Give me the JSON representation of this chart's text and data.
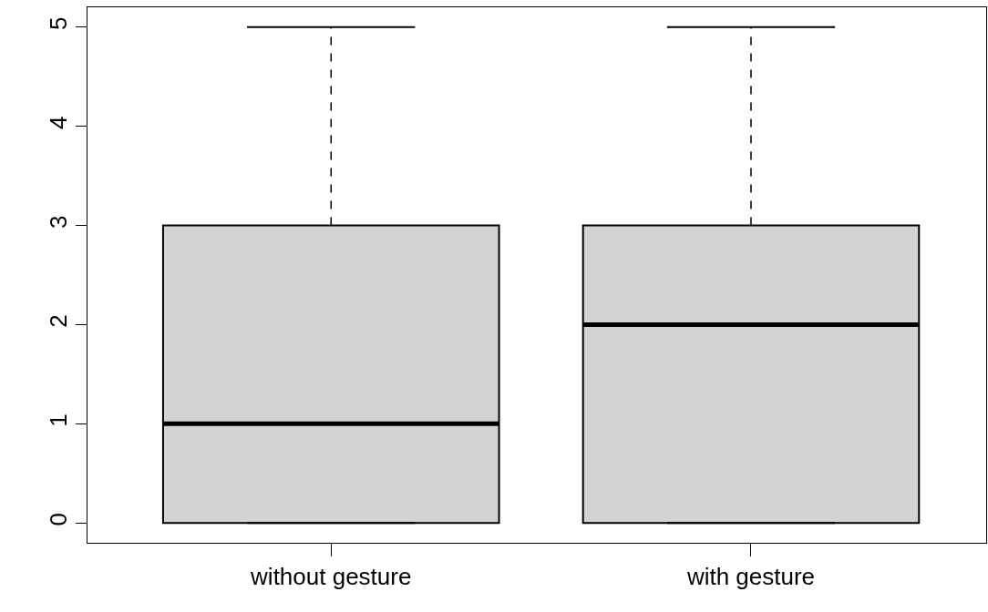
{
  "chart_data": {
    "type": "box",
    "categories": [
      "without gesture",
      "with gesture"
    ],
    "boxes": [
      {
        "low": 0,
        "q1": 0,
        "median": 1,
        "q3": 3,
        "high": 5
      },
      {
        "low": 0,
        "q1": 0,
        "median": 2,
        "q3": 3,
        "high": 5
      }
    ],
    "color": "#d3d3d3",
    "ylim": [
      -0.2,
      5.2
    ],
    "yticks": [
      0,
      1,
      2,
      3,
      4,
      5
    ]
  }
}
